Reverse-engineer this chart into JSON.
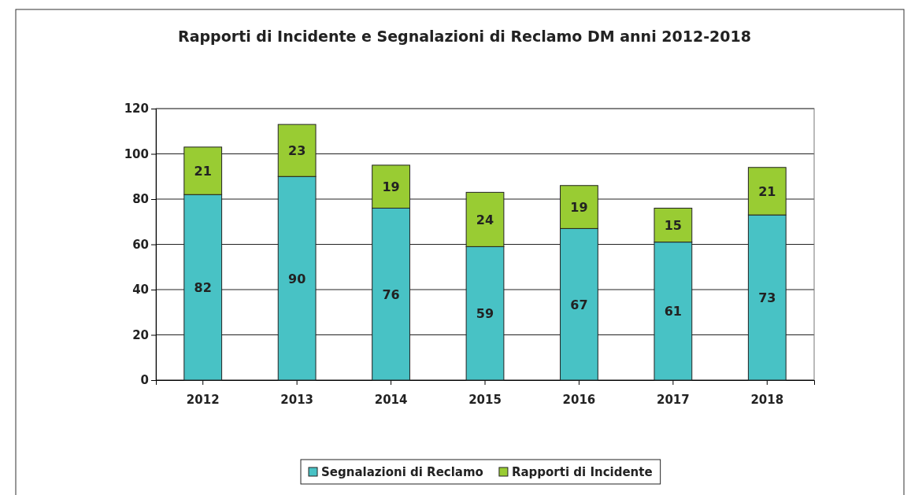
{
  "chart_data": {
    "type": "bar",
    "title": "Rapporti di Incidente e Segnalazioni di Reclamo DM anni 2012-2018",
    "categories": [
      "2012",
      "2013",
      "2014",
      "2015",
      "2016",
      "2017",
      "2018"
    ],
    "series": [
      {
        "name": "Segnalazioni di Reclamo",
        "color": "#48c2c5",
        "values": [
          82,
          90,
          76,
          59,
          67,
          61,
          73
        ]
      },
      {
        "name": "Rapporti di Incidente",
        "color": "#99cc33",
        "values": [
          21,
          23,
          19,
          24,
          19,
          15,
          21
        ]
      }
    ],
    "stacked": true,
    "ylim": [
      0,
      120
    ],
    "yticks": [
      0,
      20,
      40,
      60,
      80,
      100,
      120
    ],
    "grid": "y",
    "legend": "bottom",
    "data_labels": true
  }
}
